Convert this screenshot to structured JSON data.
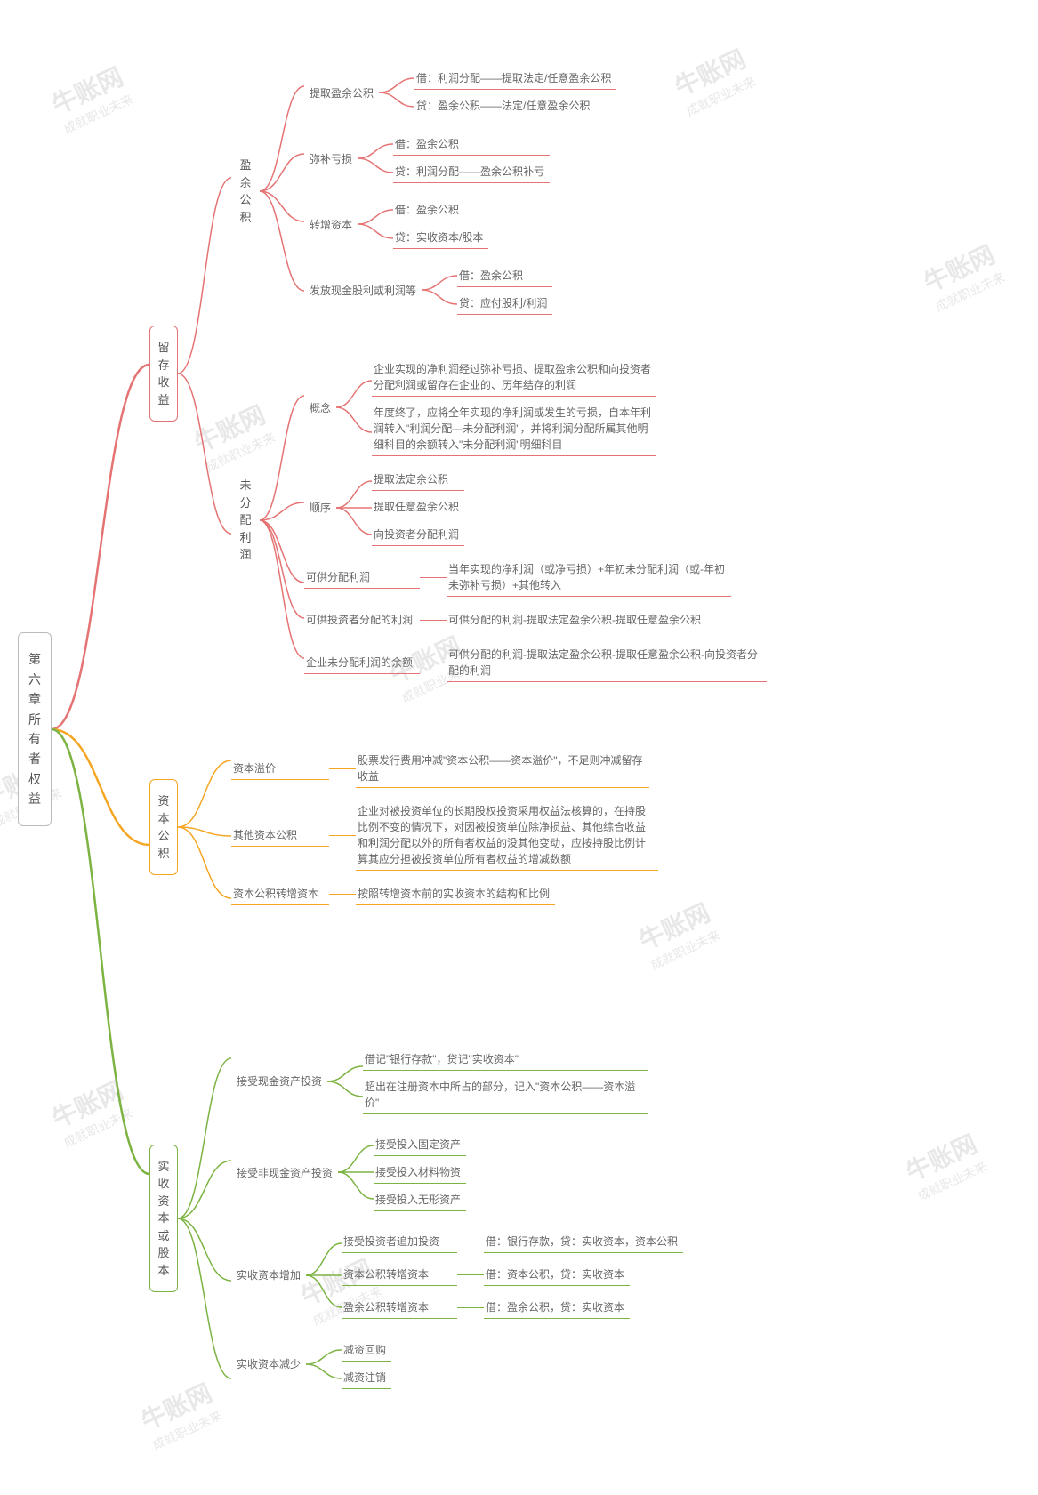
{
  "colors": {
    "red": "#e57373",
    "orange": "#f5a623",
    "green": "#7cb342",
    "root_border": "#bbbbbb",
    "text": "#666666",
    "watermark": "#e8e8e8",
    "bg": "#ffffff"
  },
  "watermark": {
    "main": "牛账网",
    "sub": "成就职业未来"
  },
  "root": "第六章所有者权益",
  "branches": [
    {
      "id": "b1",
      "color": "red",
      "label": "留存收益",
      "children": [
        {
          "id": "b1a",
          "label": "盈余公积",
          "children": [
            {
              "label": "提取盈余公积",
              "leaves": [
                "借：利润分配——提取法定/任意盈余公积",
                "贷：盈余公积——法定/任意盈余公积"
              ]
            },
            {
              "label": "弥补亏损",
              "leaves": [
                "借：盈余公积",
                "贷：利润分配——盈余公积补亏"
              ]
            },
            {
              "label": "转增资本",
              "leaves": [
                "借：盈余公积",
                "贷：实收资本/股本"
              ]
            },
            {
              "label": "发放现金股利或利润等",
              "leaves": [
                "借：盈余公积",
                "贷：应付股利/利润"
              ]
            }
          ]
        },
        {
          "id": "b1b",
          "label": "未分配利润",
          "children": [
            {
              "label": "概念",
              "leaves": [
                "企业实现的净利润经过弥补亏损、提取盈余公积和向投资者分配利润或留存在企业的、历年结存的利润",
                "年度终了，应将全年实现的净利润或发生的亏损，自本年利润转入\"利润分配—未分配利润\"，并将利润分配所属其他明细科目的余额转入\"未分配利润\"明细科目"
              ]
            },
            {
              "label": "顺序",
              "leaves": [
                "提取法定余公积",
                "提取任意盈余公积",
                "向投资者分配利润"
              ]
            },
            {
              "label": "可供分配利润",
              "leaf_inline": "当年实现的净利润（或净亏损）+年初未分配利润（或-年初未弥补亏损）+其他转入"
            },
            {
              "label": "可供投资者分配的利润",
              "leaf_inline": "可供分配的利润-提取法定盈余公积-提取任意盈余公积"
            },
            {
              "label": "企业未分配利润的余额",
              "leaf_inline": "可供分配的利润-提取法定盈余公积-提取任意盈余公积-向投资者分配的利润"
            }
          ]
        }
      ]
    },
    {
      "id": "b2",
      "color": "orange",
      "label": "资本公积",
      "children": [
        {
          "label": "资本溢价",
          "leaf_inline": "股票发行费用冲减\"资本公积——资本溢价\"，不足则冲减留存收益"
        },
        {
          "label": "其他资本公积",
          "leaf_inline": "企业对被投资单位的长期股权投资采用权益法核算的，在持股比例不变的情况下，对因被投资单位除净损益、其他综合收益和利润分配以外的所有者权益的没其他变动，应按持股比例计算其应分担被投资单位所有者权益的增减数额"
        },
        {
          "label": "资本公积转增资本",
          "leaf_inline": "按照转增资本前的实收资本的结构和比例"
        }
      ]
    },
    {
      "id": "b3",
      "color": "green",
      "label": "实收资本或股本",
      "children": [
        {
          "label": "接受现金资产投资",
          "leaves": [
            "借记\"银行存款\"，贷记\"实收资本\"",
            "超出在注册资本中所占的部分，记入\"资本公积——资本溢价\""
          ]
        },
        {
          "label": "接受非现金资产投资",
          "leaves": [
            "接受投入固定资产",
            "接受投入材料物资",
            "接受投入无形资产"
          ]
        },
        {
          "label": "实收资本增加",
          "pairs": [
            {
              "l": "接受投资者追加投资",
              "r": "借：银行存款，贷：实收资本，资本公积"
            },
            {
              "l": "资本公积转增资本",
              "r": "借：资本公积，贷：实收资本"
            },
            {
              "l": "盈余公积转增资本",
              "r": "借：盈余公积，贷：实收资本"
            }
          ]
        },
        {
          "label": "实收资本减少",
          "leaves": [
            "减资回购",
            "减资注销"
          ]
        }
      ]
    }
  ]
}
